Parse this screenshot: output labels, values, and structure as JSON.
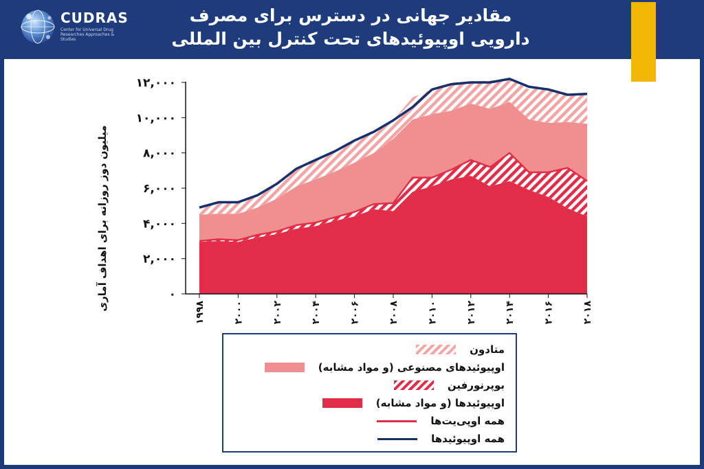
{
  "header": {
    "title_line1": "مقادیر جهانی در دسترس برای مصرف",
    "title_line2": "دارویی اوپیوئیدهای تحت کنترل بین المللی",
    "logo": {
      "name": "CUDRAS",
      "subtitle": "Center for Universal Drug Researches Approaches & Studies"
    },
    "accent_color": "#f2b705",
    "background_color": "#1e3b7b"
  },
  "chart_data": {
    "type": "area",
    "ylabel": "میلیون دوز روزانه برای اهداف آماری",
    "ylim": [
      0,
      12000
    ],
    "y_ticks": [
      "۰",
      "۲,۰۰۰",
      "۴,۰۰۰",
      "۶,۰۰۰",
      "۸,۰۰۰",
      "۱۰,۰۰۰",
      "۱۲,۰۰۰"
    ],
    "y_tick_values": [
      0,
      2000,
      4000,
      6000,
      8000,
      10000,
      12000
    ],
    "x_ticks": [
      "۱۹۹۸",
      "۲۰۰۰",
      "۲۰۰۲",
      "۲۰۰۴",
      "۲۰۰۶",
      "۲۰۰۸",
      "۲۰۱۰",
      "۲۰۱۲",
      "۲۰۱۴",
      "۲۰۱۶",
      "۲۰۱۸"
    ],
    "x_tick_values": [
      1998,
      2000,
      2002,
      2004,
      2006,
      2008,
      2010,
      2012,
      2014,
      2016,
      2018
    ],
    "x": [
      1998,
      1999,
      2000,
      2001,
      2002,
      2003,
      2004,
      2005,
      2006,
      2007,
      2008,
      2009,
      2010,
      2011,
      2012,
      2013,
      2014,
      2015,
      2016,
      2017,
      2018
    ],
    "legend_position": "bottom",
    "series": [
      {
        "name": "اوپیوئیدها (و مواد مشابه)",
        "style": "solid",
        "color": "#e22d48",
        "values": [
          2950,
          3000,
          2950,
          3200,
          3400,
          3700,
          3850,
          4150,
          4400,
          4800,
          4700,
          5800,
          6100,
          6500,
          6700,
          6100,
          6400,
          5900,
          5500,
          4850,
          4400
        ]
      },
      {
        "name": "بوپرنورفین",
        "style": "hatched",
        "color": "#e22d48",
        "values": [
          50,
          100,
          100,
          150,
          150,
          200,
          200,
          200,
          250,
          300,
          450,
          800,
          500,
          550,
          900,
          1100,
          1600,
          1000,
          1400,
          2300,
          2000
        ]
      },
      {
        "name": "اوپیوئیدهای مصنوعی (و مواد مشابه)",
        "style": "solid",
        "color": "#f08f8f",
        "values": [
          1500,
          1450,
          1500,
          1550,
          1850,
          2200,
          2450,
          2600,
          2800,
          2900,
          3650,
          3300,
          3600,
          3350,
          3200,
          3300,
          2900,
          3000,
          2800,
          2600,
          3250
        ]
      },
      {
        "name": "متادون",
        "style": "hatched",
        "color": "#f3a5a5",
        "values": [
          400,
          650,
          650,
          700,
          800,
          1000,
          1100,
          1150,
          1250,
          1200,
          1050,
          1250,
          1400,
          1600,
          1250,
          1600,
          1350,
          1700,
          2000,
          1550,
          1700
        ]
      },
      {
        "name": "همه اوپی‌یت‌ها",
        "style": "line",
        "color": "#e22d48",
        "values": [
          3000,
          3100,
          3050,
          3350,
          3550,
          3900,
          4050,
          4350,
          4650,
          5100,
          5150,
          6600,
          6600,
          7050,
          7600,
          7200,
          8000,
          6900,
          6900,
          7150,
          6400
        ]
      },
      {
        "name": "همه اوپیوئیدها",
        "style": "line",
        "color": "#16306b",
        "values": [
          4900,
          5200,
          5200,
          5600,
          6250,
          7100,
          7600,
          8100,
          8700,
          9200,
          9850,
          10600,
          11600,
          11900,
          12000,
          12000,
          12200,
          11750,
          11600,
          11300,
          11350
        ]
      }
    ]
  },
  "legend": {
    "items": [
      {
        "label": "متادون",
        "style": "hatched",
        "color": "#f3a5a5"
      },
      {
        "label": "اوپیوئیدهای مصنوعی (و مواد مشابه)",
        "style": "solid",
        "color": "#f08f8f"
      },
      {
        "label": "بوپرنورفین",
        "style": "hatched",
        "color": "#e22d48"
      },
      {
        "label": "اوپیوئیدها (و مواد مشابه)",
        "style": "solid",
        "color": "#e22d48"
      },
      {
        "label": "همه اوپی‌یت‌ها",
        "style": "line",
        "color": "#e22d48"
      },
      {
        "label": "همه اوپیوئیدها",
        "style": "line",
        "color": "#16306b"
      }
    ]
  }
}
